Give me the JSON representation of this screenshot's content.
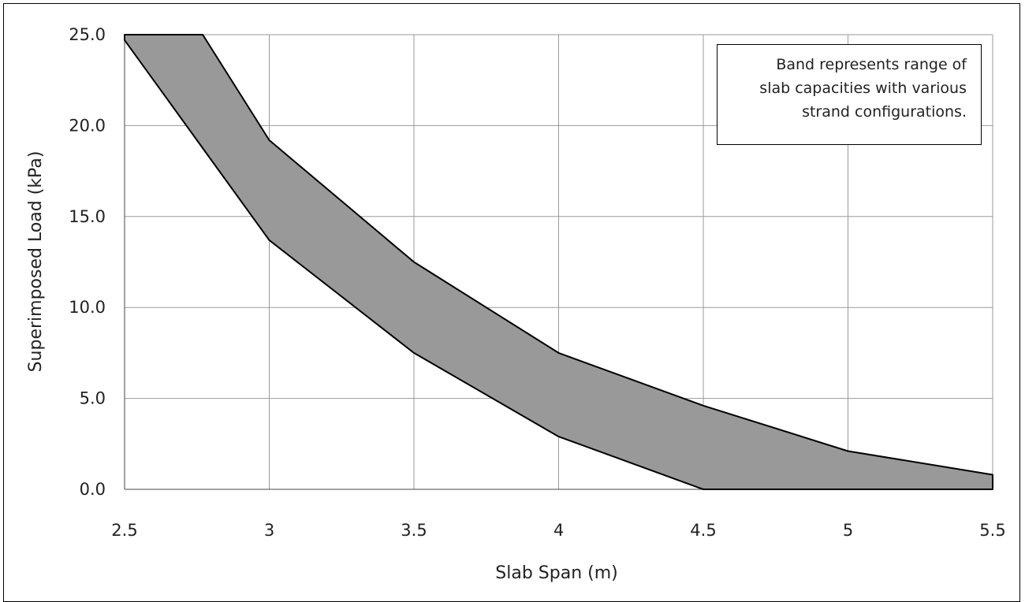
{
  "chart_data": {
    "type": "area",
    "xlabel": "Slab Span (m)",
    "ylabel": "Superimposed Load (kPa)",
    "xlim": [
      2.5,
      5.5
    ],
    "ylim": [
      0,
      25
    ],
    "x_ticks": [
      "2.5",
      "3",
      "3.5",
      "4",
      "4.5",
      "5",
      "5.5"
    ],
    "y_ticks": [
      "0.0",
      "5.0",
      "10.0",
      "15.0",
      "20.0",
      "25.0"
    ],
    "grid": true,
    "band_color": "#999999",
    "series": [
      {
        "role": "upper",
        "points": [
          [
            2.5,
            25.0
          ],
          [
            2.77,
            25.0
          ],
          [
            3.0,
            19.2
          ],
          [
            3.5,
            12.5
          ],
          [
            4.0,
            7.5
          ],
          [
            4.5,
            4.6
          ],
          [
            5.0,
            2.1
          ],
          [
            5.5,
            0.8
          ]
        ]
      },
      {
        "role": "lower",
        "points": [
          [
            2.5,
            24.7
          ],
          [
            3.0,
            13.7
          ],
          [
            3.5,
            7.5
          ],
          [
            4.0,
            2.9
          ],
          [
            4.5,
            0.0
          ],
          [
            5.0,
            0.0
          ],
          [
            5.5,
            0.0
          ]
        ]
      }
    ],
    "annotation": {
      "lines": [
        "Band represents range of",
        "slab capacities with various",
        "strand configurations."
      ],
      "position": "top-right"
    }
  }
}
